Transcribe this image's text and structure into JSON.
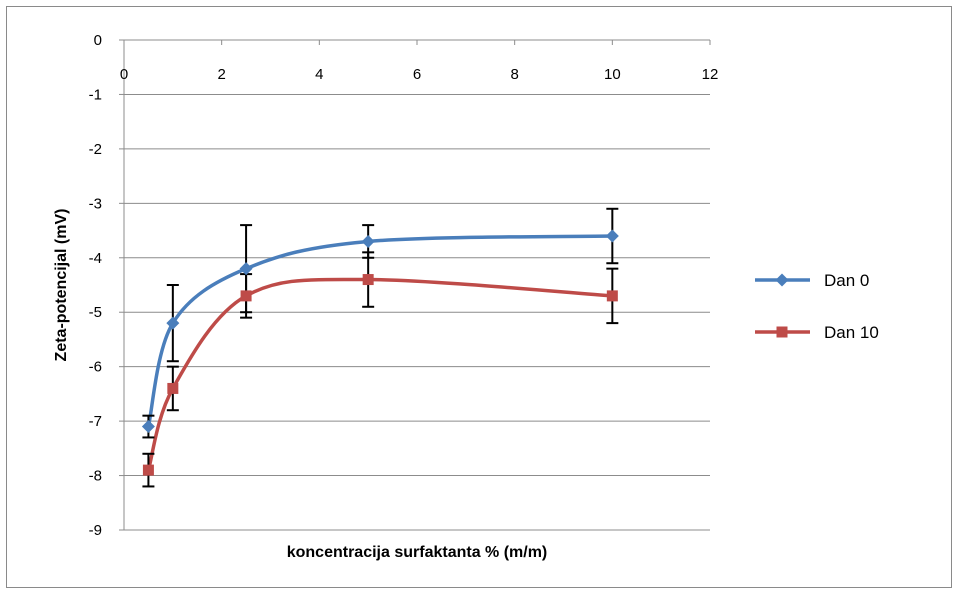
{
  "chart_data": {
    "type": "line",
    "title": "",
    "xlabel": "koncentracija surfaktanta % (m/m)",
    "ylabel": "Zeta-potencijal (mV)",
    "xlim": [
      0,
      12
    ],
    "ylim": [
      -9,
      0
    ],
    "x_ticks": [
      "0",
      "2",
      "4",
      "6",
      "8",
      "10",
      "12"
    ],
    "y_ticks": [
      "0",
      "-1",
      "-2",
      "-3",
      "-4",
      "-5",
      "-6",
      "-7",
      "-8",
      "-9"
    ],
    "x_axis_position": "top",
    "grid": "horizontal",
    "legend_position": "right",
    "smooth": true,
    "series": [
      {
        "name": "Dan 0",
        "color": "#4A7EBB",
        "marker": "diamond",
        "x": [
          0.5,
          1,
          2.5,
          5,
          10
        ],
        "y": [
          -7.1,
          -5.2,
          -4.2,
          -3.7,
          -3.6
        ],
        "error": [
          0.2,
          0.7,
          0.8,
          0.3,
          0.5
        ]
      },
      {
        "name": "Dan 10",
        "color": "#BE4B48",
        "marker": "square",
        "x": [
          0.5,
          1,
          2.5,
          5,
          10
        ],
        "y": [
          -7.9,
          -6.4,
          -4.7,
          -4.4,
          -4.7
        ],
        "error": [
          0.3,
          0.4,
          0.4,
          0.5,
          0.5
        ]
      }
    ]
  }
}
